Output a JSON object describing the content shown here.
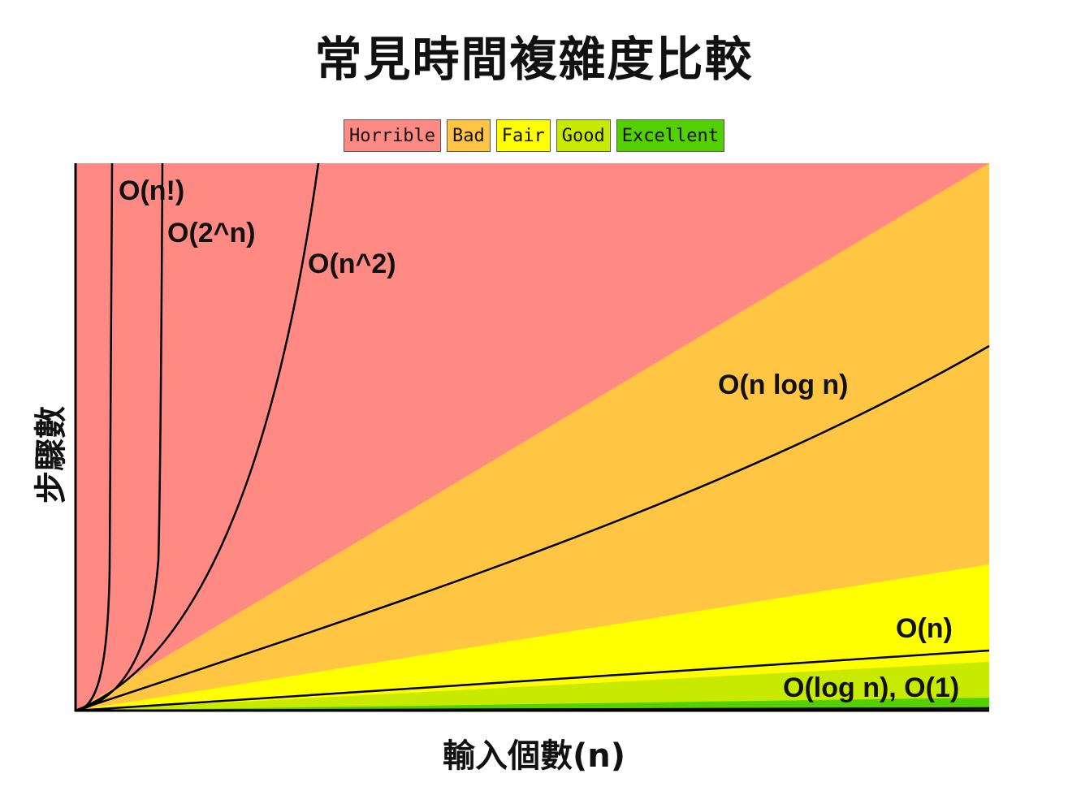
{
  "chart_data": {
    "type": "line",
    "title": "常見時間複雜度比較",
    "xlabel": "輸入個數(n)",
    "ylabel": "步驟數",
    "legend": {
      "placement": "top-center",
      "items": [
        {
          "label": "Horrible",
          "color": "#ff8a84"
        },
        {
          "label": "Bad",
          "color": "#ffc543"
        },
        {
          "label": "Fair",
          "color": "#ffff00"
        },
        {
          "label": "Good",
          "color": "#c8ea00"
        },
        {
          "label": "Excellent",
          "color": "#53d000"
        }
      ]
    },
    "series": [
      {
        "name": "O(n!)",
        "function": "factorial"
      },
      {
        "name": "O(2^n)",
        "function": "exponential"
      },
      {
        "name": "O(n^2)",
        "function": "quadratic"
      },
      {
        "name": "O(n log n)",
        "function": "nlogn"
      },
      {
        "name": "O(n)",
        "function": "linear"
      },
      {
        "name": "O(log n), O(1)",
        "function": "log-constant"
      }
    ],
    "grid": false
  }
}
